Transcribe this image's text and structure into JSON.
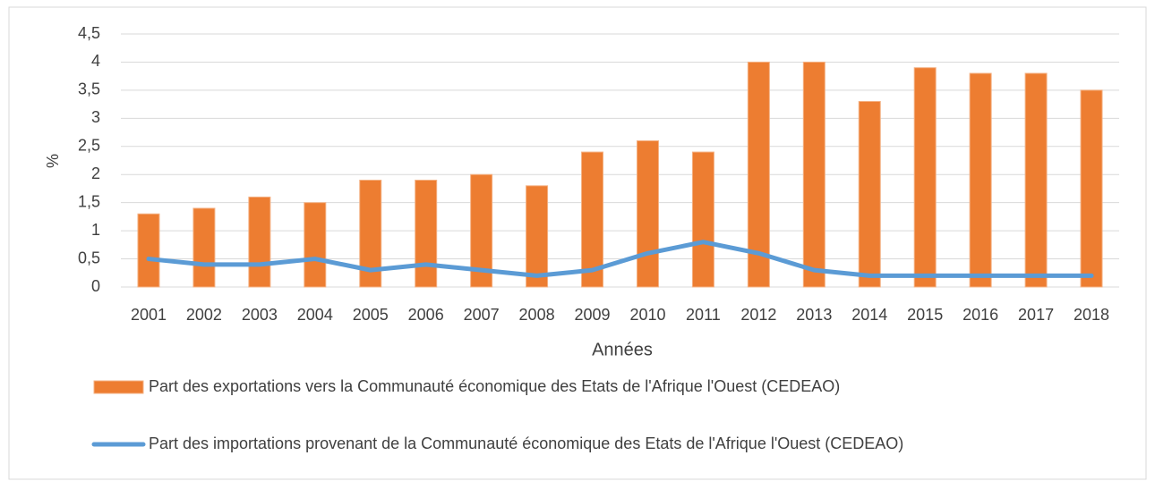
{
  "chart_data": {
    "type": "combo",
    "y_label": "%",
    "x_label": "Années",
    "categories": [
      "2001",
      "2002",
      "2003",
      "2004",
      "2005",
      "2006",
      "2007",
      "2008",
      "2009",
      "2010",
      "2011",
      "2012",
      "2013",
      "2014",
      "2015",
      "2016",
      "2017",
      "2018"
    ],
    "series": [
      {
        "name": "Part des exportations vers la  Communauté économique des Etats de l'Afrique l'Ouest (CEDEAO)",
        "type": "bar",
        "color": "#ed7d31",
        "values": [
          1.3,
          1.4,
          1.6,
          1.5,
          1.9,
          1.9,
          2.0,
          1.8,
          2.4,
          2.6,
          2.4,
          4.0,
          4.0,
          3.3,
          3.9,
          3.8,
          3.8,
          3.5
        ]
      },
      {
        "name": "Part des importations provenant de la Communauté économique des Etats de l'Afrique l'Ouest (CEDEAO)",
        "type": "line",
        "color": "#5b9bd5",
        "values": [
          0.5,
          0.4,
          0.4,
          0.5,
          0.3,
          0.4,
          0.3,
          0.2,
          0.3,
          0.6,
          0.8,
          0.6,
          0.3,
          0.2,
          0.2,
          0.2,
          0.2,
          0.2
        ]
      }
    ],
    "ylim": [
      0,
      4.5
    ],
    "yticks": [
      0,
      {
        "value": 0.5,
        "label": "0,5"
      },
      1,
      {
        "value": 1.5,
        "label": "1,5"
      },
      2,
      {
        "value": 2.5,
        "label": "2,5"
      },
      3,
      {
        "value": 3.5,
        "label": "3,5"
      },
      4,
      {
        "value": 4.5,
        "label": "4,5"
      }
    ],
    "grid": true,
    "legend": "bottom"
  }
}
